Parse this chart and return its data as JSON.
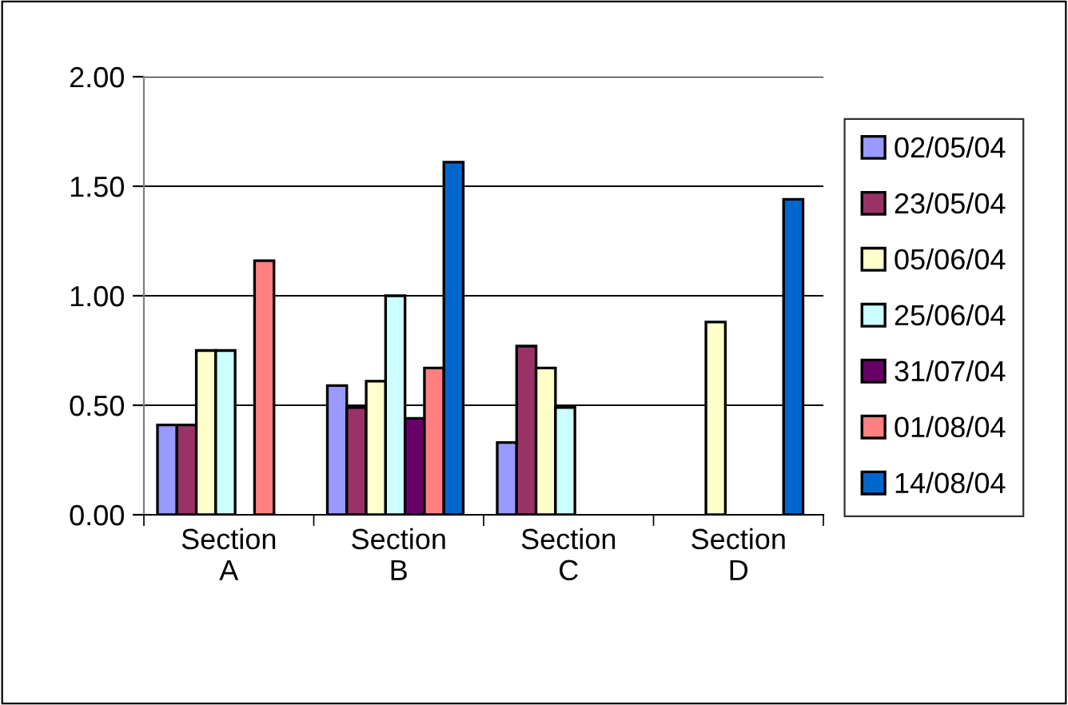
{
  "chart_data": {
    "type": "bar",
    "categories": [
      "Section\nA",
      "Section\nB",
      "Section\nC",
      "Section\nD"
    ],
    "series": [
      {
        "name": "02/05/04",
        "color": "#9999ff",
        "values": [
          0.41,
          0.59,
          0.33,
          null
        ]
      },
      {
        "name": "23/05/04",
        "color": "#993366",
        "values": [
          0.41,
          0.49,
          0.77,
          null
        ]
      },
      {
        "name": "05/06/04",
        "color": "#ffffcc",
        "values": [
          0.75,
          0.61,
          0.67,
          0.88
        ]
      },
      {
        "name": "25/06/04",
        "color": "#ccffff",
        "values": [
          0.75,
          1.0,
          0.49,
          null
        ]
      },
      {
        "name": "31/07/04",
        "color": "#660066",
        "values": [
          null,
          0.44,
          null,
          null
        ]
      },
      {
        "name": "01/08/04",
        "color": "#ff8080",
        "values": [
          1.16,
          0.67,
          null,
          null
        ]
      },
      {
        "name": "14/08/04",
        "color": "#0066cc",
        "values": [
          null,
          1.61,
          null,
          1.44
        ]
      }
    ],
    "ylim": [
      0,
      2
    ],
    "yticks": [
      {
        "value": 0,
        "label": "0.00"
      },
      {
        "value": 0.5,
        "label": "0.50"
      },
      {
        "value": 1,
        "label": "1.00"
      },
      {
        "value": 1.5,
        "label": "1.50"
      },
      {
        "value": 2,
        "label": "2.00"
      }
    ],
    "grid": "y",
    "legend": "right"
  }
}
